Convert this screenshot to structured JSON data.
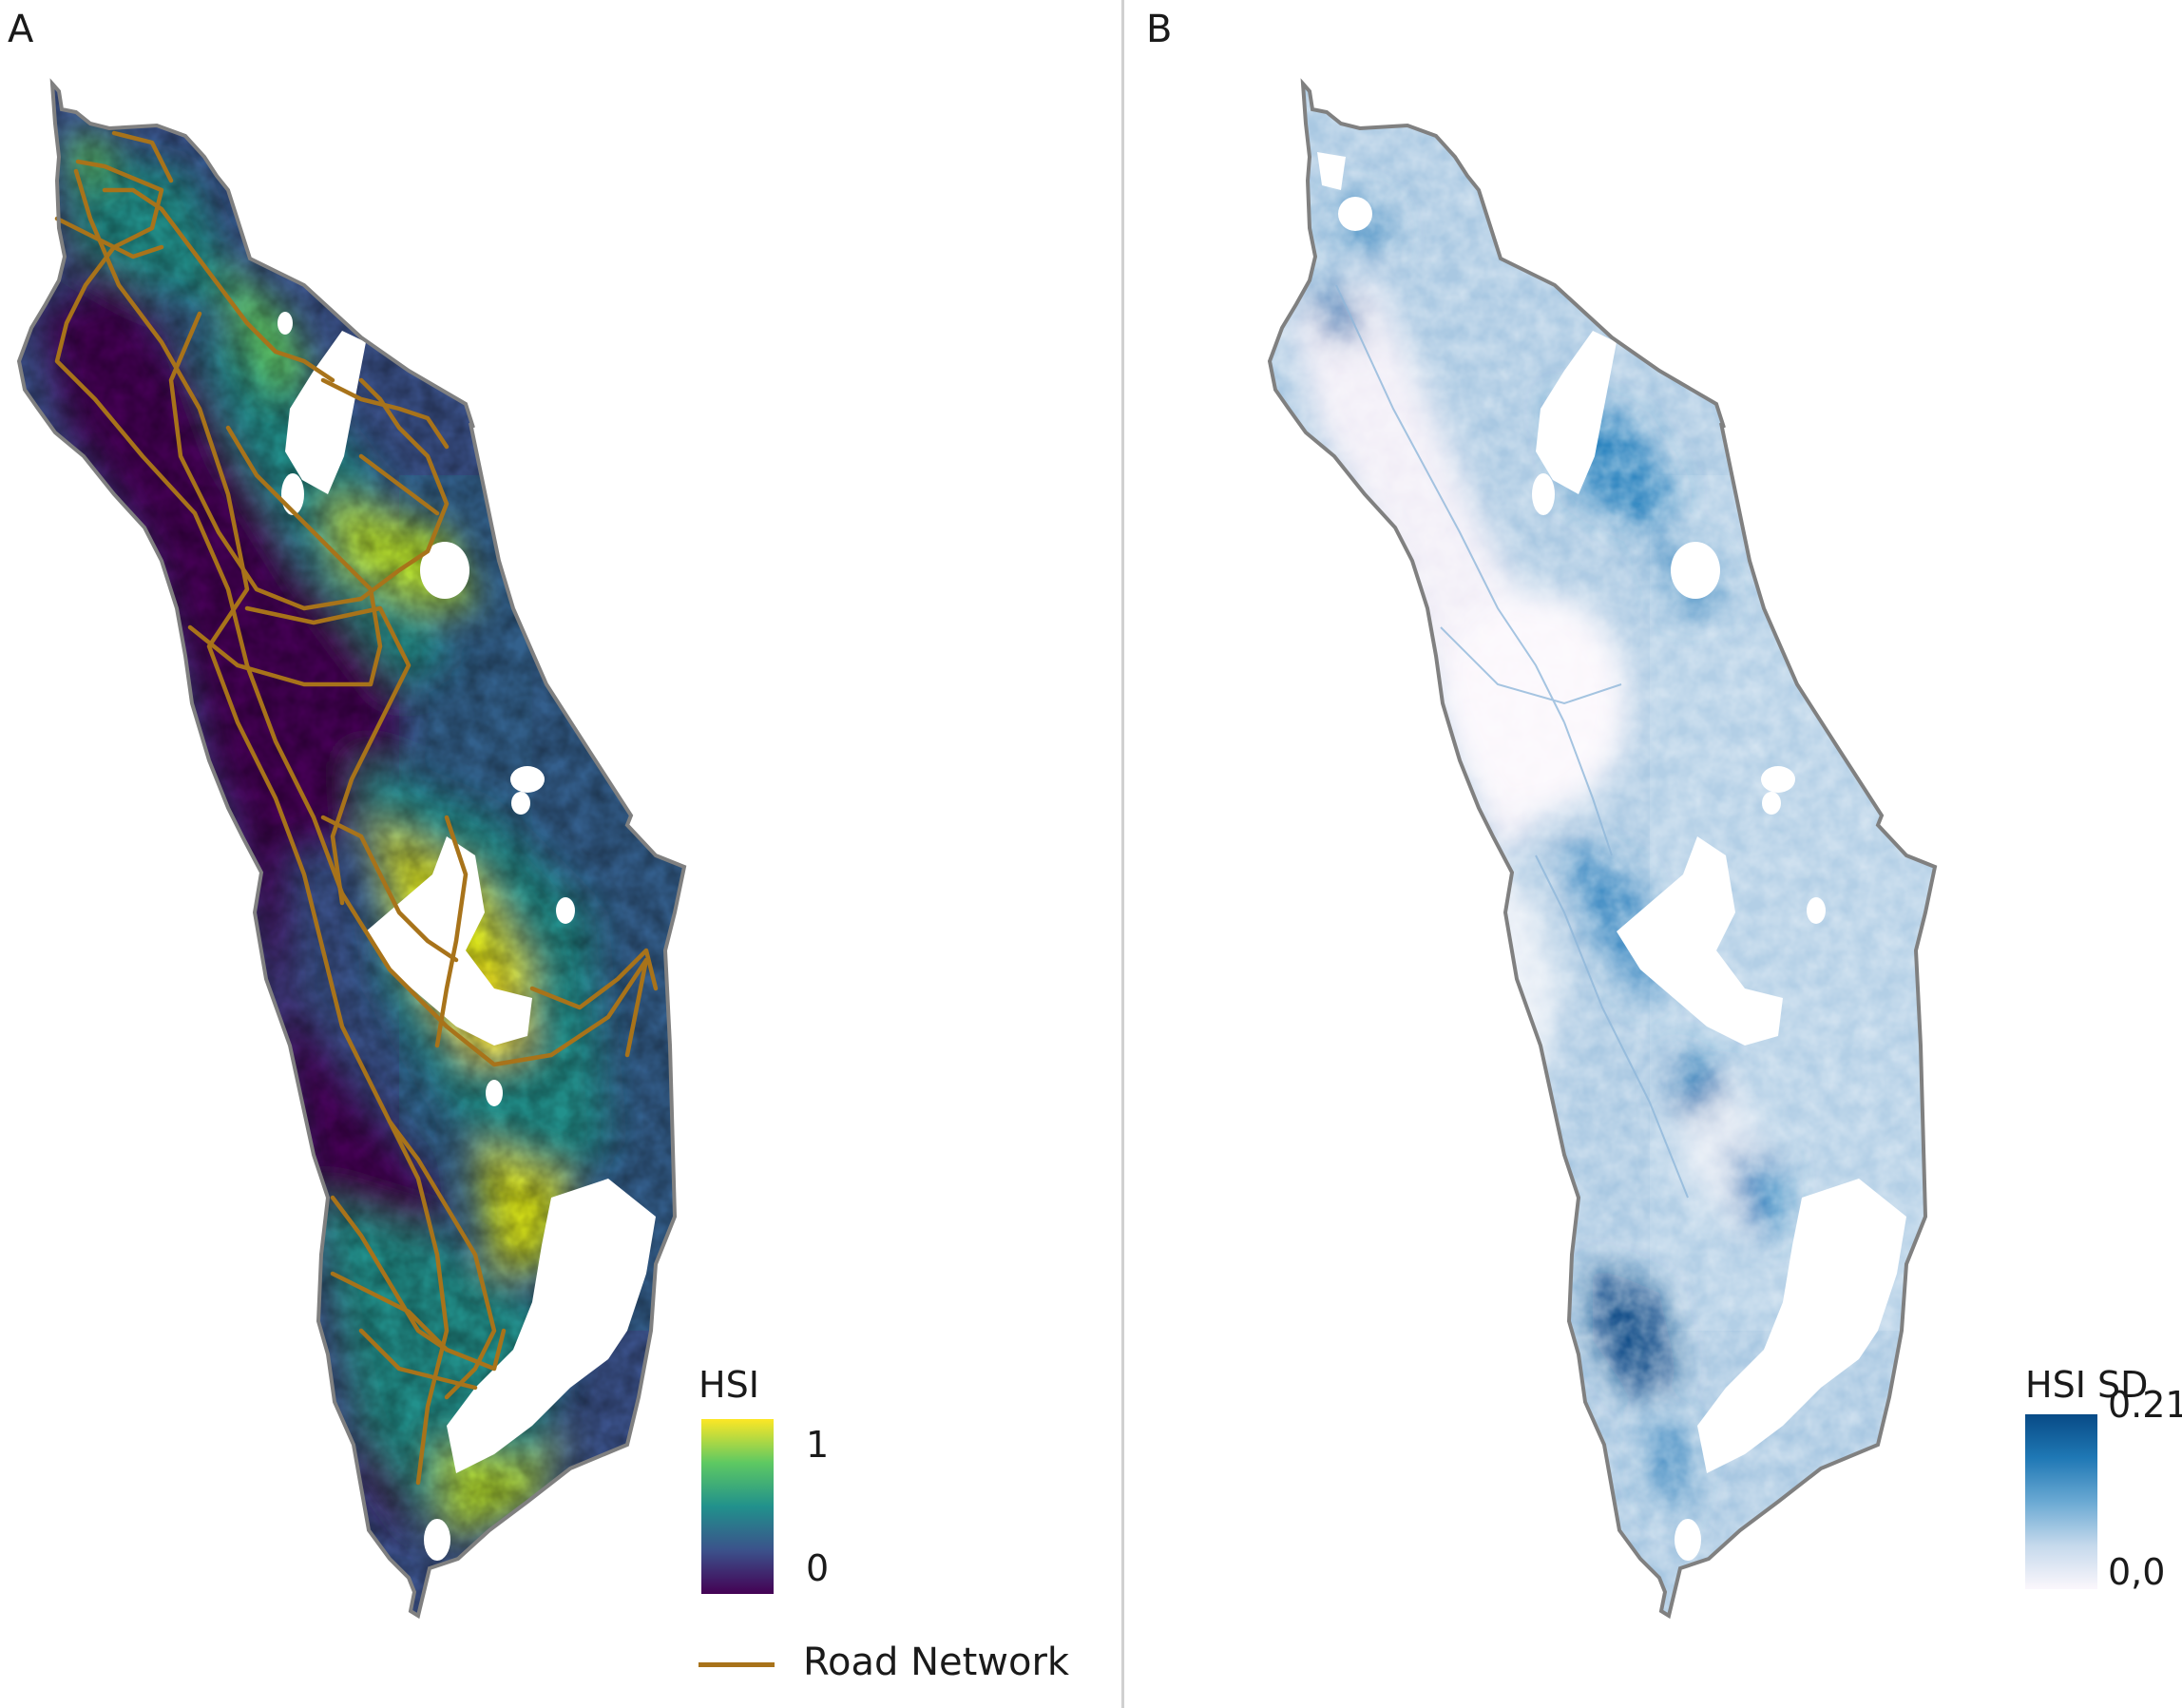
{
  "panel_a": {
    "letter": "A",
    "legend": {
      "title": "HSI",
      "max_label": "1",
      "min_label": "0",
      "max_value": 1,
      "min_value": 0,
      "colors": [
        "#440154",
        "#3b528b",
        "#21918c",
        "#5ec962",
        "#fde725"
      ]
    },
    "road_legend": {
      "label": "Road Network",
      "color": "#a8731a"
    }
  },
  "panel_b": {
    "letter": "B",
    "legend": {
      "title": "HSI SD",
      "max_label": "0.21",
      "min_label": "0,0",
      "max_value": 0.21,
      "min_value": 0.0,
      "colors": [
        "#fbf7fc",
        "#c5d9ec",
        "#6aa9d3",
        "#1f78b5",
        "#084a86"
      ]
    }
  },
  "colors": {
    "outline": "#808080",
    "divider": "#d0d0d0",
    "masked_area": "#ffffff"
  }
}
